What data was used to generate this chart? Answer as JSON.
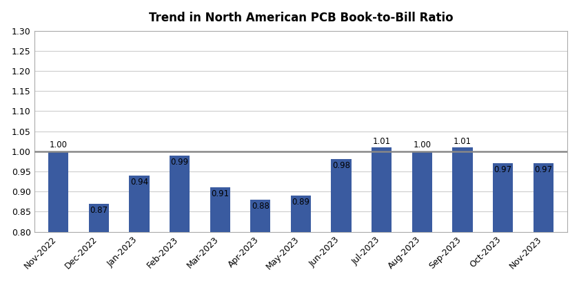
{
  "title": "Trend in North American PCB Book-to-Bill Ratio",
  "categories": [
    "Nov-2022",
    "Dec-2022",
    "Jan-2023",
    "Feb-2023",
    "Mar-2023",
    "Apr-2023",
    "May-2023",
    "Jun-2023",
    "Jul-2023",
    "Aug-2023",
    "Sep-2023",
    "Oct-2023",
    "Nov-2023"
  ],
  "values": [
    1.0,
    0.87,
    0.94,
    0.99,
    0.91,
    0.88,
    0.89,
    0.98,
    1.01,
    1.0,
    1.01,
    0.97,
    0.97
  ],
  "bar_color": "#3A5BA0",
  "reference_line_y": 1.0,
  "reference_line_color": "#888888",
  "ymin": 0.8,
  "ymax": 1.3,
  "yticks": [
    0.8,
    0.85,
    0.9,
    0.95,
    1.0,
    1.05,
    1.1,
    1.15,
    1.2,
    1.25,
    1.3
  ],
  "ytick_labels": [
    "0.80",
    "0.85",
    "0.90",
    "0.95",
    "1.00",
    "1.05",
    "1.10",
    "1.15",
    "1.20",
    "1.25",
    "1.30"
  ],
  "label_fontsize": 8.5,
  "title_fontsize": 12,
  "tick_fontsize": 9,
  "background_color": "#FFFFFF",
  "grid_color": "#CCCCCC",
  "border_color": "#AAAAAA"
}
